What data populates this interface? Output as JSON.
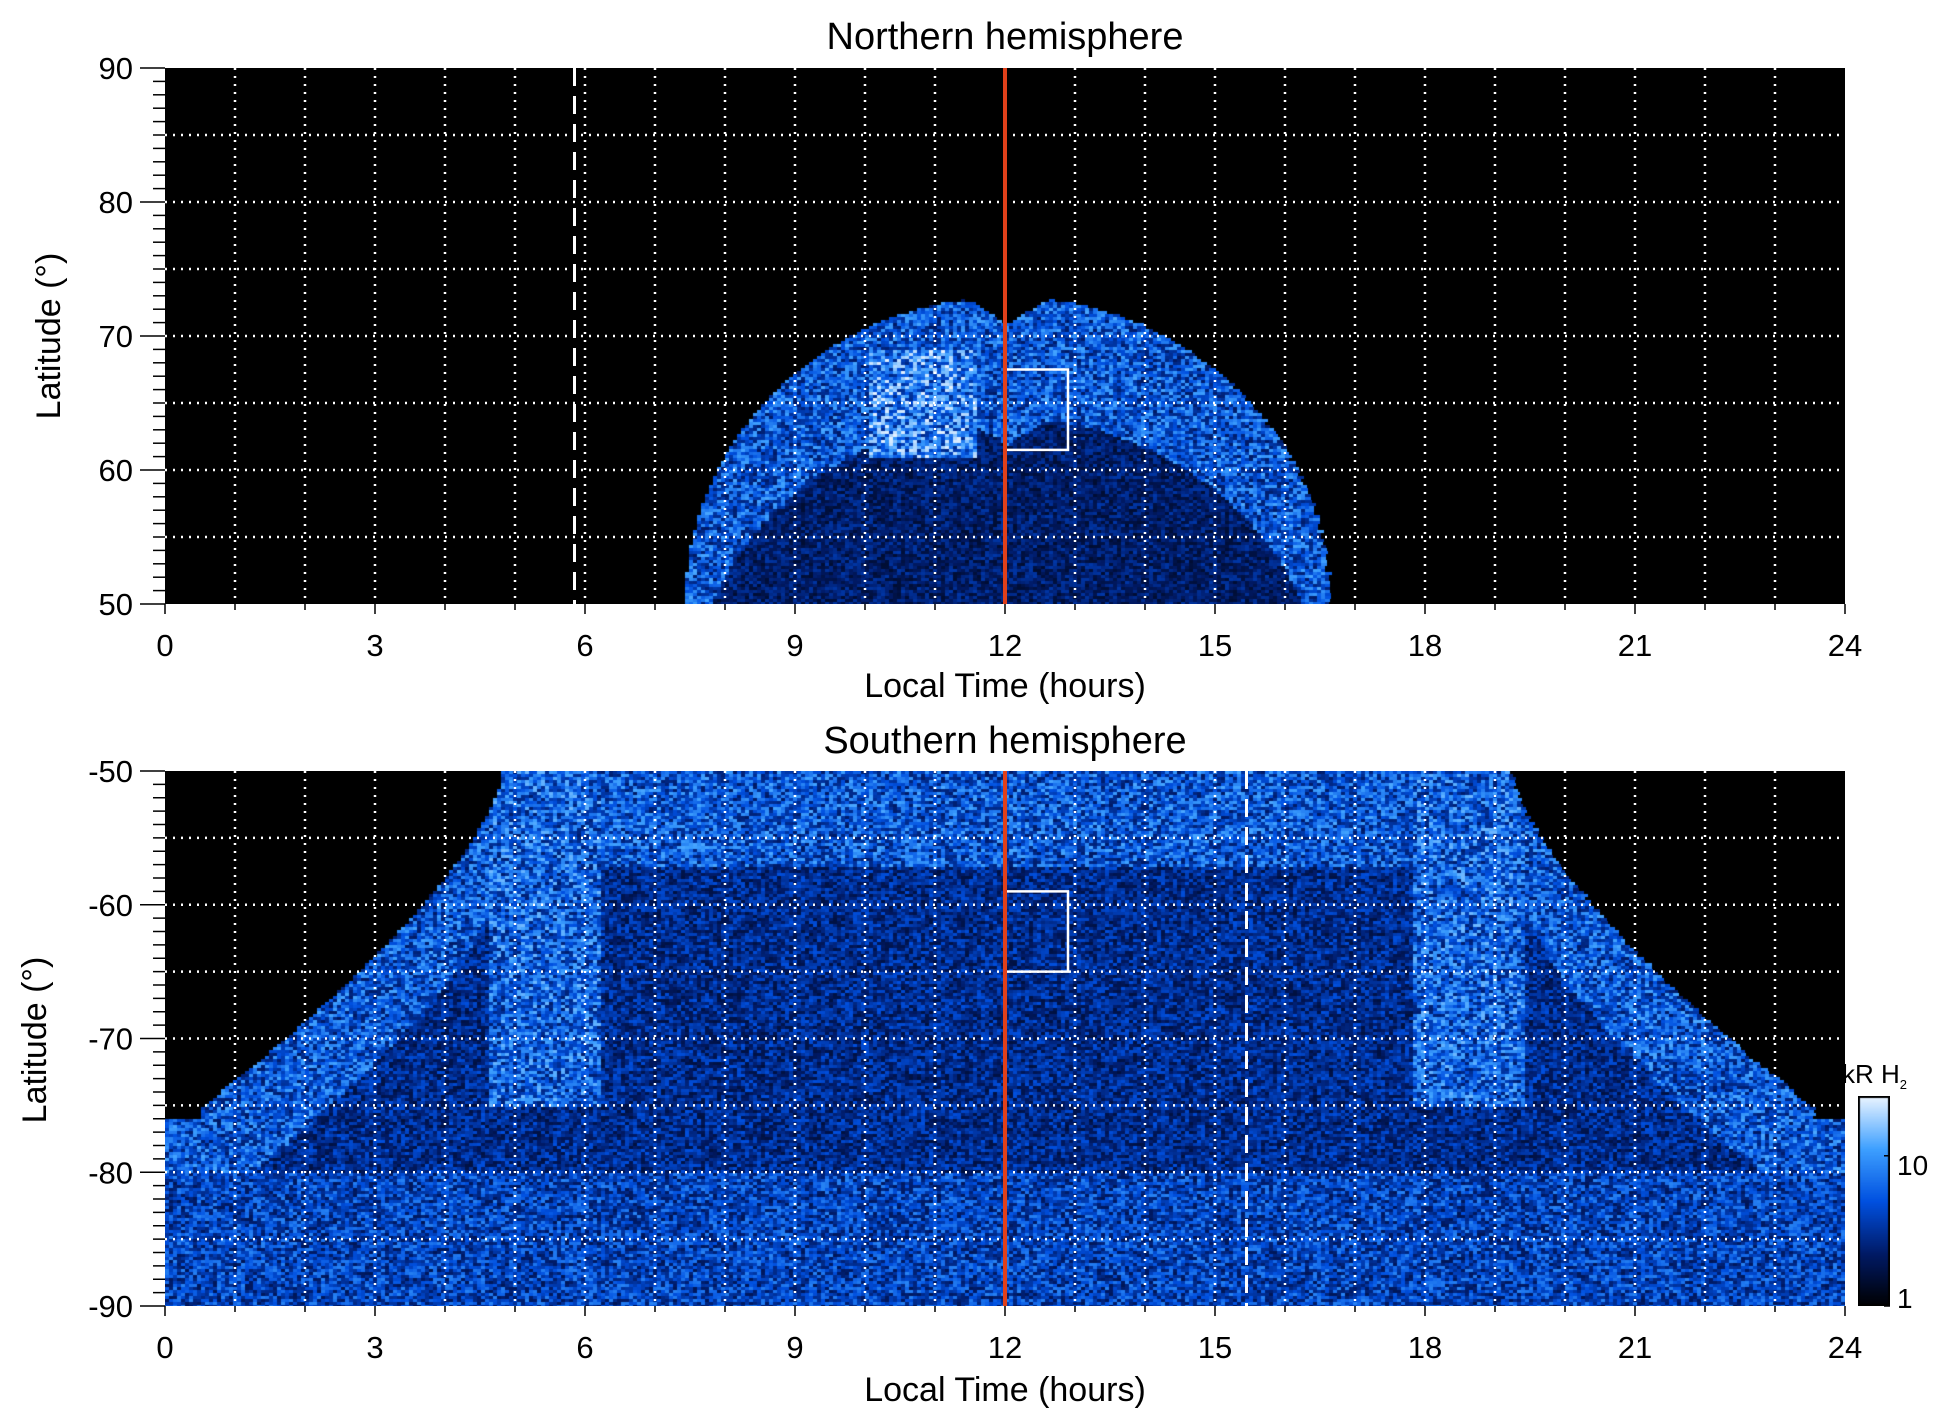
{
  "chart_data": [
    {
      "type": "heatmap",
      "title": "Northern hemisphere",
      "xlabel": "Local Time (hours)",
      "ylabel": "Latitude (°)",
      "xlim": [
        0,
        24
      ],
      "ylim": [
        50,
        90
      ],
      "xticks": [
        "0",
        "3",
        "6",
        "9",
        "12",
        "15",
        "18",
        "21",
        "24"
      ],
      "yticks": [
        "90",
        "80",
        "70",
        "60",
        "50"
      ],
      "grid": true,
      "annotations": {
        "red_line_local_time": 12,
        "white_dashed_line_local_time": 5.85,
        "white_box": {
          "local_time": [
            12.0,
            12.9
          ],
          "latitude": [
            61.5,
            67.5
          ]
        }
      }
    },
    {
      "type": "heatmap",
      "title": "Southern hemisphere",
      "xlabel": "Local Time (hours)",
      "ylabel": "Latitude (°)",
      "xlim": [
        0,
        24
      ],
      "ylim": [
        -90,
        -50
      ],
      "xticks": [
        "0",
        "3",
        "6",
        "9",
        "12",
        "15",
        "18",
        "21",
        "24"
      ],
      "yticks": [
        "-50",
        "-60",
        "-70",
        "-80",
        "-90"
      ],
      "grid": true,
      "annotations": {
        "red_line_local_time": 12,
        "white_dashed_line_local_time": 15.45,
        "white_box": {
          "local_time": [
            12.0,
            12.9
          ],
          "latitude": [
            -65,
            -59
          ]
        }
      }
    }
  ],
  "colorbar": {
    "label": "kR H",
    "label_subscript": "2",
    "scale": "log",
    "range": [
      1,
      25
    ],
    "ticks": [
      "10",
      "1"
    ],
    "colors": [
      "#000000",
      "#001a66",
      "#0050e0",
      "#3ea0ff",
      "#eaf4ff"
    ]
  },
  "colors": {
    "noon_line": "#e0401a",
    "background": "#000000",
    "grid": "#ffffff"
  }
}
